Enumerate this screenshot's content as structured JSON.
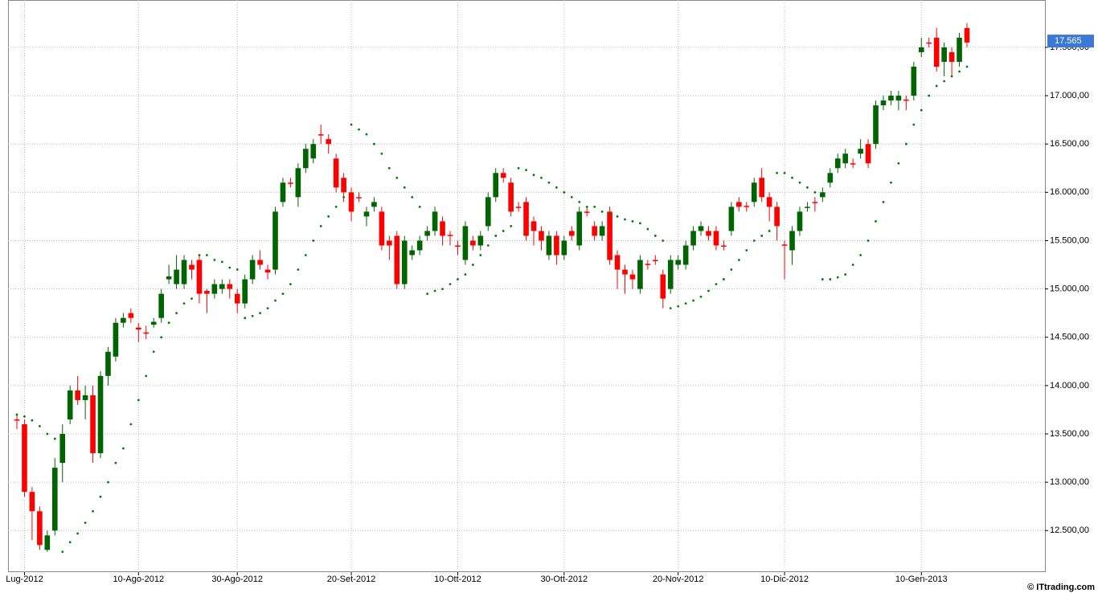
{
  "chart_data": {
    "type": "candlestick",
    "categories": [
      null,
      "Lug-2012",
      null,
      null,
      null,
      null,
      null,
      null,
      null,
      null,
      null,
      null,
      null,
      null,
      null,
      null,
      "10-Ago-2012",
      null,
      null,
      null,
      null,
      null,
      null,
      null,
      null,
      null,
      null,
      null,
      null,
      "30-Ago-2012",
      null,
      null,
      null,
      null,
      null,
      null,
      null,
      null,
      null,
      null,
      null,
      null,
      null,
      null,
      "20-Set-2012",
      null,
      null,
      null,
      null,
      null,
      null,
      null,
      null,
      null,
      null,
      null,
      null,
      null,
      "10-Ott-2012",
      null,
      null,
      null,
      null,
      null,
      null,
      null,
      null,
      null,
      null,
      null,
      null,
      null,
      "30-Ott-2012",
      null,
      null,
      null,
      null,
      null,
      null,
      null,
      null,
      null,
      null,
      null,
      null,
      null,
      null,
      "20-Nov-2012",
      null,
      null,
      null,
      null,
      null,
      null,
      null,
      null,
      null,
      null,
      null,
      null,
      null,
      "10-Dic-2012",
      null,
      null,
      null,
      null,
      null,
      null,
      null,
      null,
      null,
      null,
      null,
      null,
      null,
      null,
      null,
      null,
      null,
      "10-Gen-2013",
      null,
      null,
      null,
      null,
      null,
      null
    ],
    "open": [
      13650,
      13600,
      12900,
      12700,
      12300,
      12500,
      13200,
      13650,
      13950,
      13850,
      13900,
      13300,
      14100,
      14300,
      14650,
      14750,
      14600,
      14550,
      14630,
      14700,
      15100,
      15050,
      15050,
      15250,
      15300,
      14980,
      14950,
      15000,
      15050,
      14950,
      14850,
      15100,
      15300,
      15200,
      15200,
      15900,
      16100,
      15950,
      16250,
      16350,
      16600,
      16550,
      16350,
      16150,
      16000,
      15950,
      15750,
      15850,
      15800,
      15500,
      15550,
      15050,
      15350,
      15400,
      15550,
      15600,
      15700,
      15560,
      15450,
      15300,
      15500,
      15450,
      15650,
      15950,
      16200,
      16100,
      15850,
      15900,
      15700,
      15600,
      15350,
      15550,
      15350,
      15600,
      15450,
      15800,
      15650,
      15550,
      15800,
      15350,
      15200,
      15150,
      15000,
      15260,
      15300,
      15150,
      15000,
      15250,
      15250,
      15450,
      15600,
      15600,
      15600,
      15450,
      15600,
      15900,
      15860,
      15900,
      16150,
      15950,
      15850,
      15460,
      15400,
      15600,
      15840,
      15900,
      15950,
      16100,
      16250,
      16300,
      16300,
      16400,
      16500,
      16500,
      16900,
      16950,
      16950,
      16960,
      17000,
      17450,
      17550,
      17600,
      17350,
      17450,
      17350,
      17700
    ],
    "high": [
      13700,
      13650,
      12950,
      12750,
      12500,
      13250,
      13600,
      14000,
      14100,
      14000,
      14000,
      14150,
      14400,
      14700,
      14750,
      14800,
      14650,
      14620,
      14700,
      15000,
      15250,
      15350,
      15350,
      15300,
      15350,
      15000,
      15100,
      15100,
      15100,
      15000,
      15150,
      15350,
      15400,
      15250,
      15850,
      16150,
      16150,
      16300,
      16500,
      16550,
      16700,
      16600,
      16400,
      16200,
      16050,
      16000,
      15850,
      15950,
      15850,
      15550,
      15600,
      15550,
      15450,
      15550,
      15650,
      15850,
      15750,
      15600,
      15500,
      15700,
      15550,
      15600,
      16000,
      16250,
      16250,
      16150,
      15900,
      15950,
      15750,
      15650,
      15600,
      15600,
      15550,
      15650,
      15850,
      15850,
      15700,
      15700,
      15850,
      15400,
      15250,
      15200,
      15350,
      15300,
      15350,
      15200,
      15350,
      15350,
      15500,
      15650,
      15700,
      15650,
      15650,
      15500,
      15900,
      15950,
      15900,
      16150,
      16250,
      16000,
      15900,
      15500,
      15650,
      15850,
      15900,
      15950,
      16050,
      16250,
      16400,
      16450,
      16350,
      16550,
      16550,
      16950,
      17000,
      17050,
      17050,
      17000,
      17350,
      17600,
      17600,
      17700,
      17550,
      17500,
      17650,
      17750
    ],
    "low": [
      13550,
      12850,
      12400,
      12300,
      12280,
      12450,
      13000,
      13600,
      13800,
      13650,
      13200,
      13250,
      14000,
      14250,
      14600,
      14650,
      14450,
      14480,
      14600,
      14650,
      15050,
      15000,
      15000,
      15100,
      14850,
      14750,
      14900,
      14950,
      14900,
      14750,
      14800,
      15050,
      15200,
      15100,
      15150,
      15850,
      16050,
      15850,
      16200,
      16300,
      16500,
      16400,
      16000,
      15900,
      15700,
      15900,
      15650,
      15800,
      15400,
      15300,
      15000,
      15000,
      15300,
      15350,
      15500,
      15550,
      15450,
      15450,
      15350,
      15250,
      15400,
      15400,
      15600,
      15900,
      16100,
      15750,
      15800,
      15500,
      15450,
      15400,
      15300,
      15250,
      15300,
      15500,
      15400,
      15750,
      15500,
      15500,
      15250,
      15000,
      14950,
      15000,
      14950,
      15200,
      15250,
      14800,
      14950,
      15200,
      15200,
      15400,
      15550,
      15500,
      15400,
      15400,
      15550,
      15800,
      15800,
      15850,
      15900,
      15700,
      15500,
      15100,
      15250,
      15550,
      15800,
      15800,
      15900,
      16050,
      16200,
      16250,
      16250,
      16350,
      16250,
      16450,
      16850,
      16900,
      16850,
      16850,
      16950,
      17400,
      17500,
      17250,
      17200,
      17200,
      17300,
      17500
    ],
    "close": [
      13650,
      12900,
      12700,
      12350,
      12450,
      13150,
      13500,
      13950,
      13850,
      13900,
      13300,
      14100,
      14350,
      14650,
      14700,
      14700,
      14580,
      14550,
      14660,
      14950,
      15130,
      15200,
      15300,
      15200,
      14950,
      14950,
      15050,
      15050,
      15000,
      14850,
      15100,
      15300,
      15250,
      15170,
      15800,
      16100,
      16100,
      16250,
      16450,
      16500,
      16600,
      16500,
      16050,
      16000,
      15800,
      15950,
      15800,
      15900,
      15450,
      15450,
      15050,
      15500,
      15400,
      15500,
      15600,
      15800,
      15550,
      15550,
      15450,
      15650,
      15450,
      15550,
      15950,
      16200,
      16150,
      15800,
      15850,
      15550,
      15600,
      15500,
      15550,
      15350,
      15500,
      15550,
      15800,
      15800,
      15550,
      15650,
      15300,
      15200,
      15150,
      15100,
      15300,
      15250,
      15300,
      14900,
      15300,
      15300,
      15450,
      15600,
      15650,
      15550,
      15450,
      15450,
      15850,
      15850,
      15850,
      16100,
      15950,
      15850,
      15650,
      15450,
      15600,
      15800,
      15850,
      15900,
      16000,
      16200,
      16350,
      16400,
      16300,
      16450,
      16300,
      16900,
      16950,
      17000,
      17000,
      16950,
      17300,
      17500,
      17550,
      17300,
      17500,
      17350,
      17600,
      17550
    ],
    "sar": [
      13700,
      13680,
      13640,
      13580,
      13500,
      13450,
      12280,
      12380,
      12470,
      12580,
      12700,
      12850,
      13000,
      13200,
      13350,
      13600,
      13850,
      14100,
      14350,
      14500,
      14650,
      14750,
      14850,
      14900,
      15350,
      15350,
      15300,
      15280,
      15220,
      15200,
      14700,
      14720,
      14750,
      14800,
      14880,
      14950,
      15050,
      15200,
      15350,
      15500,
      15650,
      15750,
      15850,
      15950,
      16700,
      16650,
      16600,
      16500,
      16400,
      16250,
      16150,
      16050,
      15950,
      15850,
      14950,
      14980,
      15000,
      15050,
      15100,
      15150,
      15250,
      15350,
      15450,
      15550,
      15600,
      15650,
      16250,
      16230,
      16180,
      16150,
      16100,
      16050,
      16000,
      15950,
      15900,
      15850,
      15850,
      15800,
      15780,
      15750,
      15720,
      15700,
      15680,
      15620,
      15550,
      15500,
      14800,
      14820,
      14850,
      14880,
      14920,
      14980,
      15050,
      15100,
      15200,
      15300,
      15400,
      15500,
      15550,
      15600,
      16200,
      16200,
      16150,
      16100,
      16050,
      16000,
      15100,
      15100,
      15120,
      15150,
      15250,
      15350,
      15500,
      15700,
      15900,
      16100,
      16300,
      16500,
      16700,
      16850,
      17000,
      17100,
      17150,
      17200,
      17250,
      17300
    ],
    "up_color": "#006400",
    "down_color": "#ff0000",
    "sar_color": "#008000",
    "ylim": [
      12070,
      17990
    ],
    "yticks": [
      {
        "value": 12500,
        "label": "12.500,00"
      },
      {
        "value": 13000,
        "label": "13.000,00"
      },
      {
        "value": 13500,
        "label": "13.500,00"
      },
      {
        "value": 14000,
        "label": "14.000,00"
      },
      {
        "value": 14500,
        "label": "14.500,00"
      },
      {
        "value": 15000,
        "label": "15.000,00"
      },
      {
        "value": 15500,
        "label": "15.500,00"
      },
      {
        "value": 16000,
        "label": "16.000,00"
      },
      {
        "value": 16500,
        "label": "16.500,00"
      },
      {
        "value": 17000,
        "label": "17.000,00"
      },
      {
        "value": 17500,
        "label": "17.500,00"
      }
    ],
    "grid": true,
    "last_price": {
      "value": 17565,
      "label": "17.565"
    },
    "watermark": "© ITtrading.com"
  }
}
